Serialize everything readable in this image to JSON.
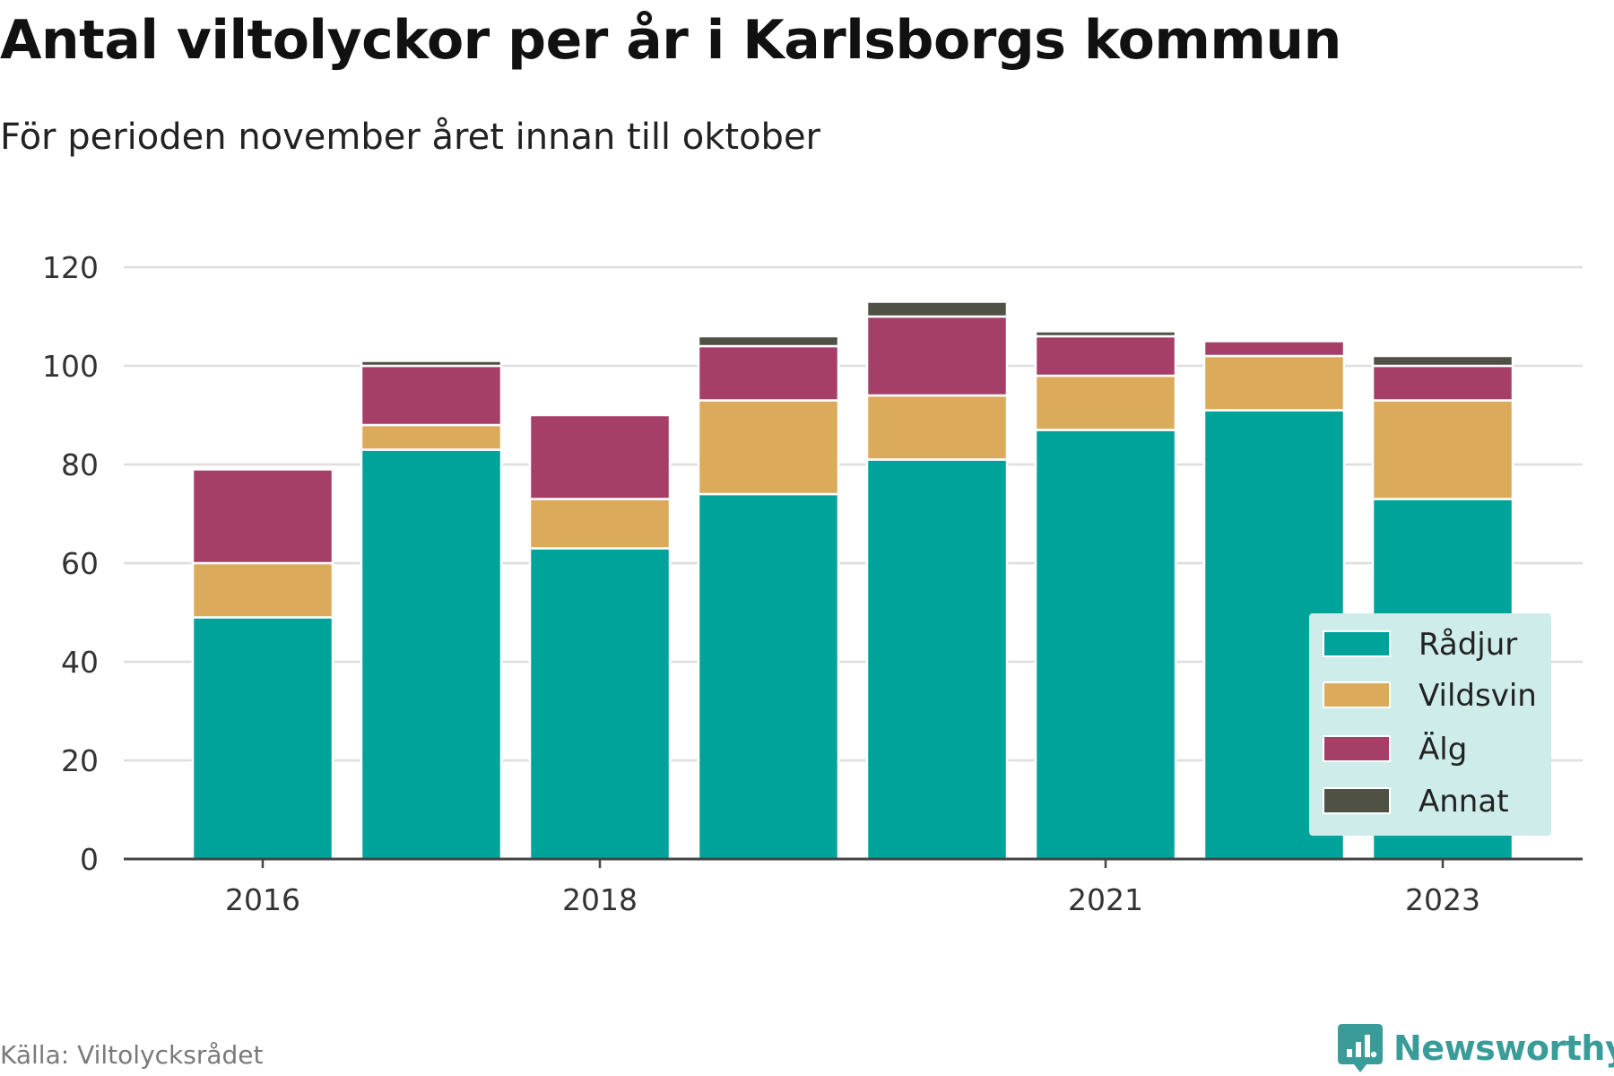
{
  "title": "Antal viltolyckor per år i Karlsborgs kommun",
  "subtitle": "För perioden november året innan till oktober",
  "source": "Källa: Viltolycksrådet",
  "brand": "Newsworthy",
  "chart_data": {
    "type": "bar",
    "stacked": true,
    "x": [
      2016,
      2017,
      2018,
      2019,
      2020,
      2021,
      2022,
      2023
    ],
    "x_tick_labels": [
      "2016",
      "2018",
      "2021",
      "2023"
    ],
    "x_tick_values": [
      2016,
      2018,
      2021,
      2023
    ],
    "y_ticks": [
      0,
      20,
      40,
      60,
      80,
      100,
      120
    ],
    "ylim": [
      0,
      124
    ],
    "grid": true,
    "legend_position": "bottom-right",
    "series": [
      {
        "name": "Rådjur",
        "color": "#00a39a",
        "values": [
          49,
          83,
          63,
          74,
          81,
          87,
          91,
          73
        ]
      },
      {
        "name": "Vildsvin",
        "color": "#dbab5b",
        "values": [
          11,
          5,
          10,
          19,
          13,
          11,
          11,
          20
        ]
      },
      {
        "name": "Älg",
        "color": "#a53f68",
        "values": [
          19,
          12,
          17,
          11,
          16,
          8,
          3,
          7
        ]
      },
      {
        "name": "Annat",
        "color": "#4f5144",
        "values": [
          0,
          1,
          0,
          2,
          3,
          1,
          0,
          2
        ]
      }
    ]
  }
}
